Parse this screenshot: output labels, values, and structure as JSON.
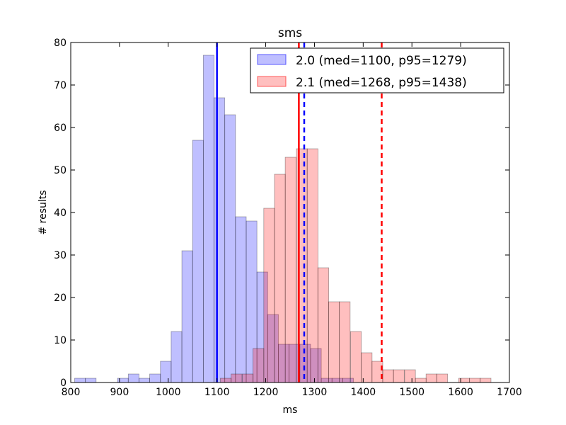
{
  "chart_data": {
    "type": "histogram",
    "title": "sms",
    "xlabel": "ms",
    "ylabel": "# results",
    "xlim": [
      800,
      1700
    ],
    "ylim": [
      0,
      80
    ],
    "xticks": [
      800,
      900,
      1000,
      1100,
      1200,
      1300,
      1400,
      1500,
      1600,
      1700
    ],
    "yticks": [
      0,
      10,
      20,
      30,
      40,
      50,
      60,
      70,
      80
    ],
    "grid": false,
    "legend_position": "top-right",
    "series": [
      {
        "name": "2.0 (med=1100, p95=1279)",
        "face_color": "#0000ff",
        "face_alpha": 0.25,
        "line_color": "#0000ff",
        "bin_width": 22,
        "bins": [
          [
            808,
            1
          ],
          [
            830,
            1
          ],
          [
            896,
            1
          ],
          [
            918,
            2
          ],
          [
            940,
            1
          ],
          [
            962,
            2
          ],
          [
            984,
            5
          ],
          [
            1006,
            12
          ],
          [
            1028,
            31
          ],
          [
            1050,
            57
          ],
          [
            1072,
            77
          ],
          [
            1094,
            67
          ],
          [
            1116,
            63
          ],
          [
            1138,
            39
          ],
          [
            1160,
            38
          ],
          [
            1182,
            26
          ],
          [
            1204,
            16
          ],
          [
            1226,
            9
          ],
          [
            1248,
            9
          ],
          [
            1270,
            9
          ],
          [
            1292,
            8
          ],
          [
            1314,
            1
          ],
          [
            1336,
            1
          ],
          [
            1358,
            1
          ]
        ],
        "median": 1100,
        "p95": 1279
      },
      {
        "name": "2.1 (med=1268, p95=1438)",
        "face_color": "#ff0000",
        "face_alpha": 0.25,
        "line_color": "#ff0000",
        "bin_width": 22.2,
        "bins": [
          [
            1107,
            1
          ],
          [
            1129,
            2
          ],
          [
            1152,
            2
          ],
          [
            1174,
            8
          ],
          [
            1196,
            41
          ],
          [
            1218,
            49
          ],
          [
            1240,
            53
          ],
          [
            1263,
            55
          ],
          [
            1285,
            55
          ],
          [
            1307,
            27
          ],
          [
            1329,
            19
          ],
          [
            1351,
            19
          ],
          [
            1374,
            12
          ],
          [
            1396,
            7
          ],
          [
            1418,
            5
          ],
          [
            1440,
            3
          ],
          [
            1462,
            3
          ],
          [
            1485,
            3
          ],
          [
            1507,
            1
          ],
          [
            1529,
            2
          ],
          [
            1551,
            2
          ],
          [
            1574,
            0
          ],
          [
            1596,
            1
          ],
          [
            1618,
            1
          ],
          [
            1640,
            1
          ]
        ],
        "median": 1268,
        "p95": 1438
      }
    ]
  }
}
